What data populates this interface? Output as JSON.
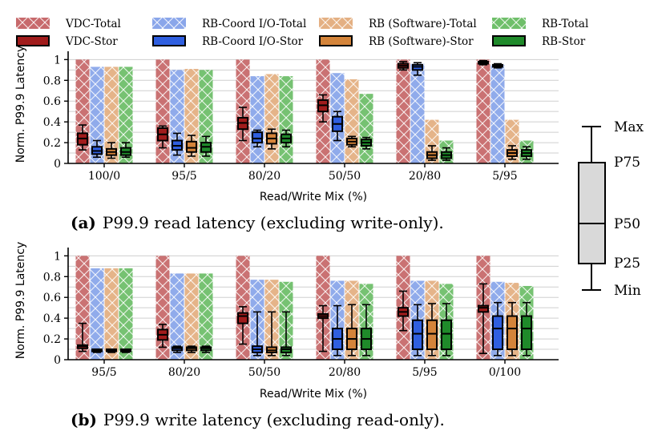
{
  "legend": [
    {
      "name": "VDC-Total",
      "kind": "total",
      "color": "#c76a6c"
    },
    {
      "name": "RB-Coord I/O-Total",
      "kind": "total",
      "color": "#8aa6ea"
    },
    {
      "name": "RB (Software)-Total",
      "kind": "total",
      "color": "#e4b083"
    },
    {
      "name": "RB-Total",
      "kind": "total",
      "color": "#6fbf6a"
    },
    {
      "name": "VDC-Stor",
      "kind": "stor",
      "color": "#a11c1c"
    },
    {
      "name": "RB-Coord I/O-Stor",
      "kind": "stor",
      "color": "#2f5fe0"
    },
    {
      "name": "RB (Software)-Stor",
      "kind": "stor",
      "color": "#d4843a"
    },
    {
      "name": "RB-Stor",
      "kind": "stor",
      "color": "#1f8a2a"
    }
  ],
  "chart_data": [
    {
      "type": "bar",
      "id": "a",
      "caption_label": "(a)",
      "caption_text": "P99.9 read latency (excluding write-only).",
      "xlabel": "Read/Write Mix (%)",
      "ylabel": "Norm. P99.9 Latency",
      "ylim": [
        0,
        1.08
      ],
      "yticks": [
        0,
        0.2,
        0.4,
        0.6,
        0.8,
        1
      ],
      "ytick_labels": [
        "0",
        "0.2",
        "0.4",
        "0.6",
        "0.8",
        "1"
      ],
      "grid": true,
      "categories": [
        "100/0",
        "95/5",
        "80/20",
        "50/50",
        "20/80",
        "5/95"
      ],
      "series": [
        {
          "name": "VDC-Total",
          "values": [
            1,
            1,
            1,
            1,
            1,
            1
          ]
        },
        {
          "name": "RB-Coord I/O-Total",
          "values": [
            0.93,
            0.9,
            0.84,
            0.87,
            0.96,
            0.95
          ]
        },
        {
          "name": "RB (Software)-Total",
          "values": [
            0.93,
            0.91,
            0.86,
            0.81,
            0.42,
            0.42
          ]
        },
        {
          "name": "RB-Total",
          "values": [
            0.93,
            0.9,
            0.84,
            0.67,
            0.22,
            0.22
          ]
        }
      ],
      "boxes": [
        {
          "name": "VDC-Stor",
          "stats": [
            [
              0.13,
              0.18,
              0.24,
              0.29,
              0.37
            ],
            [
              0.15,
              0.22,
              0.28,
              0.34,
              0.36
            ],
            [
              0.22,
              0.33,
              0.39,
              0.44,
              0.54
            ],
            [
              0.4,
              0.5,
              0.56,
              0.61,
              0.66
            ],
            [
              0.9,
              0.92,
              0.94,
              0.96,
              0.98
            ],
            [
              0.95,
              0.96,
              0.97,
              0.98,
              0.99
            ]
          ]
        },
        {
          "name": "RB-Coord I/O-Stor",
          "stats": [
            [
              0.06,
              0.09,
              0.12,
              0.16,
              0.22
            ],
            [
              0.08,
              0.13,
              0.17,
              0.22,
              0.29
            ],
            [
              0.16,
              0.2,
              0.24,
              0.3,
              0.32
            ],
            [
              0.22,
              0.31,
              0.38,
              0.45,
              0.5
            ],
            [
              0.85,
              0.9,
              0.93,
              0.95,
              0.97
            ],
            [
              0.92,
              0.93,
              0.94,
              0.95,
              0.96
            ]
          ]
        },
        {
          "name": "RB (Software)-Stor",
          "stats": [
            [
              0.05,
              0.08,
              0.11,
              0.14,
              0.2
            ],
            [
              0.07,
              0.11,
              0.15,
              0.21,
              0.27
            ],
            [
              0.14,
              0.19,
              0.24,
              0.29,
              0.33
            ],
            [
              0.16,
              0.18,
              0.21,
              0.24,
              0.26
            ],
            [
              0.03,
              0.05,
              0.08,
              0.11,
              0.17
            ],
            [
              0.04,
              0.07,
              0.1,
              0.13,
              0.17
            ]
          ]
        },
        {
          "name": "RB-Stor",
          "stats": [
            [
              0.06,
              0.08,
              0.11,
              0.15,
              0.2
            ],
            [
              0.07,
              0.11,
              0.16,
              0.2,
              0.26
            ],
            [
              0.16,
              0.2,
              0.24,
              0.28,
              0.32
            ],
            [
              0.14,
              0.17,
              0.2,
              0.23,
              0.25
            ],
            [
              0.03,
              0.05,
              0.08,
              0.11,
              0.15
            ],
            [
              0.04,
              0.07,
              0.1,
              0.13,
              0.16
            ]
          ]
        }
      ]
    },
    {
      "type": "bar",
      "id": "b",
      "caption_label": "(b)",
      "caption_text": "P99.9 write latency (excluding read-only).",
      "xlabel": "Read/Write Mix (%)",
      "ylabel": "Norm. P99.9 Latency",
      "ylim": [
        0,
        1.08
      ],
      "yticks": [
        0,
        0.2,
        0.4,
        0.6,
        0.8,
        1
      ],
      "ytick_labels": [
        "0",
        "0.2",
        "0.4",
        "0.6",
        "0.8",
        "1"
      ],
      "grid": true,
      "categories": [
        "95/5",
        "80/20",
        "50/50",
        "20/80",
        "5/95",
        "0/100"
      ],
      "series": [
        {
          "name": "VDC-Total",
          "values": [
            1,
            1,
            1,
            1,
            1,
            1
          ]
        },
        {
          "name": "RB-Coord I/O-Total",
          "values": [
            0.88,
            0.83,
            0.77,
            0.76,
            0.76,
            0.75
          ]
        },
        {
          "name": "RB (Software)-Total",
          "values": [
            0.88,
            0.83,
            0.77,
            0.76,
            0.76,
            0.74
          ]
        },
        {
          "name": "RB-Total",
          "values": [
            0.88,
            0.83,
            0.75,
            0.73,
            0.73,
            0.71
          ]
        }
      ],
      "boxes": [
        {
          "name": "VDC-Stor",
          "stats": [
            [
              0.08,
              0.11,
              0.13,
              0.14,
              0.35
            ],
            [
              0.12,
              0.19,
              0.24,
              0.29,
              0.34
            ],
            [
              0.15,
              0.35,
              0.42,
              0.45,
              0.51
            ],
            [
              0.08,
              0.4,
              0.42,
              0.44,
              0.52
            ],
            [
              0.28,
              0.42,
              0.46,
              0.5,
              0.66
            ],
            [
              0.06,
              0.46,
              0.5,
              0.52,
              0.73
            ]
          ]
        },
        {
          "name": "RB-Coord I/O-Stor",
          "stats": [
            [
              0.07,
              0.08,
              0.09,
              0.1,
              0.1
            ],
            [
              0.07,
              0.09,
              0.11,
              0.12,
              0.13
            ],
            [
              0.04,
              0.07,
              0.1,
              0.13,
              0.46
            ],
            [
              0.04,
              0.1,
              0.2,
              0.3,
              0.52
            ],
            [
              0.04,
              0.1,
              0.25,
              0.38,
              0.53
            ],
            [
              0.04,
              0.1,
              0.3,
              0.42,
              0.55
            ]
          ]
        },
        {
          "name": "RB (Software)-Stor",
          "stats": [
            [
              0.07,
              0.08,
              0.09,
              0.1,
              0.1
            ],
            [
              0.07,
              0.09,
              0.11,
              0.12,
              0.13
            ],
            [
              0.04,
              0.07,
              0.09,
              0.12,
              0.46
            ],
            [
              0.04,
              0.1,
              0.2,
              0.3,
              0.53
            ],
            [
              0.04,
              0.1,
              0.25,
              0.38,
              0.54
            ],
            [
              0.04,
              0.1,
              0.3,
              0.42,
              0.55
            ]
          ]
        },
        {
          "name": "RB-Stor",
          "stats": [
            [
              0.07,
              0.08,
              0.09,
              0.1,
              0.1
            ],
            [
              0.07,
              0.09,
              0.11,
              0.12,
              0.13
            ],
            [
              0.04,
              0.07,
              0.1,
              0.12,
              0.46
            ],
            [
              0.04,
              0.1,
              0.2,
              0.3,
              0.53
            ],
            [
              0.04,
              0.1,
              0.25,
              0.38,
              0.54
            ],
            [
              0.04,
              0.1,
              0.3,
              0.42,
              0.55
            ]
          ]
        }
      ]
    }
  ],
  "box_key": {
    "labels": [
      "Max",
      "P75",
      "P50",
      "P25",
      "Min"
    ]
  }
}
